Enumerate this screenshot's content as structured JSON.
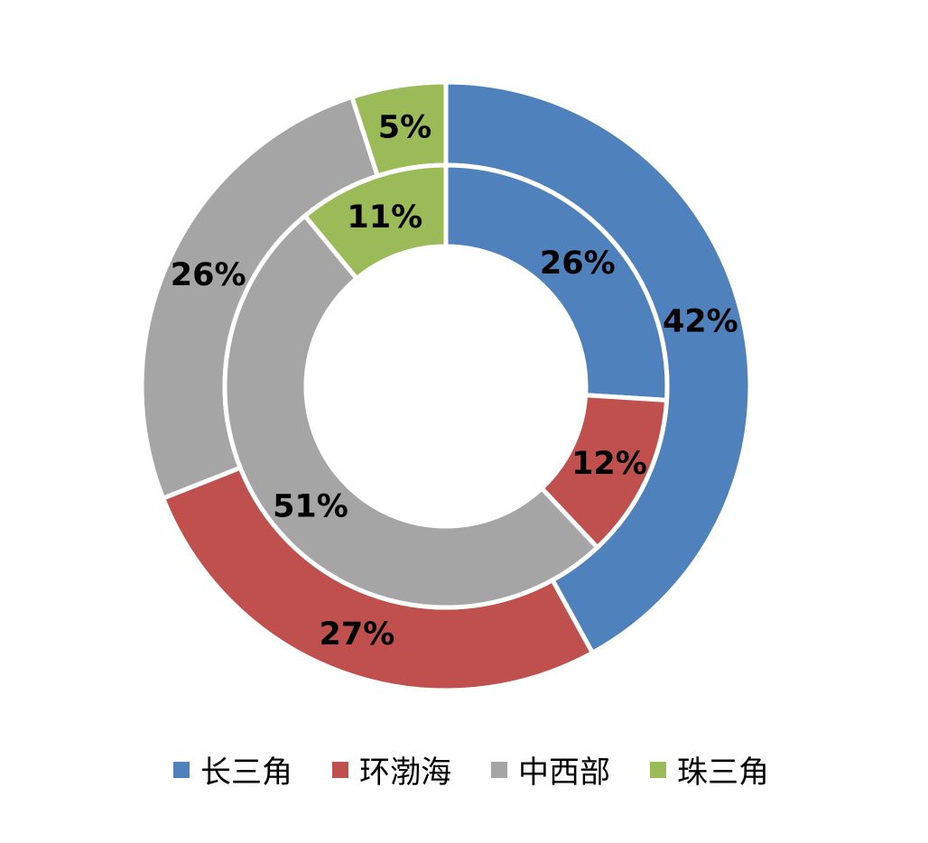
{
  "chart_data": {
    "type": "pie",
    "subtype": "double-donut",
    "categories": [
      "长三角",
      "环渤海",
      "中西部",
      "珠三角"
    ],
    "colors": [
      "#4F81BD",
      "#C0504D",
      "#A5A5A5",
      "#9BBB59"
    ],
    "series": [
      {
        "ring": "outer",
        "values": [
          42,
          27,
          26,
          5
        ],
        "labels": [
          "42%",
          "27%",
          "26%",
          "5%"
        ]
      },
      {
        "ring": "inner",
        "values": [
          26,
          12,
          51,
          11
        ],
        "labels": [
          "26%",
          "12%",
          "51%",
          "11%"
        ]
      }
    ],
    "legend_position": "bottom"
  }
}
